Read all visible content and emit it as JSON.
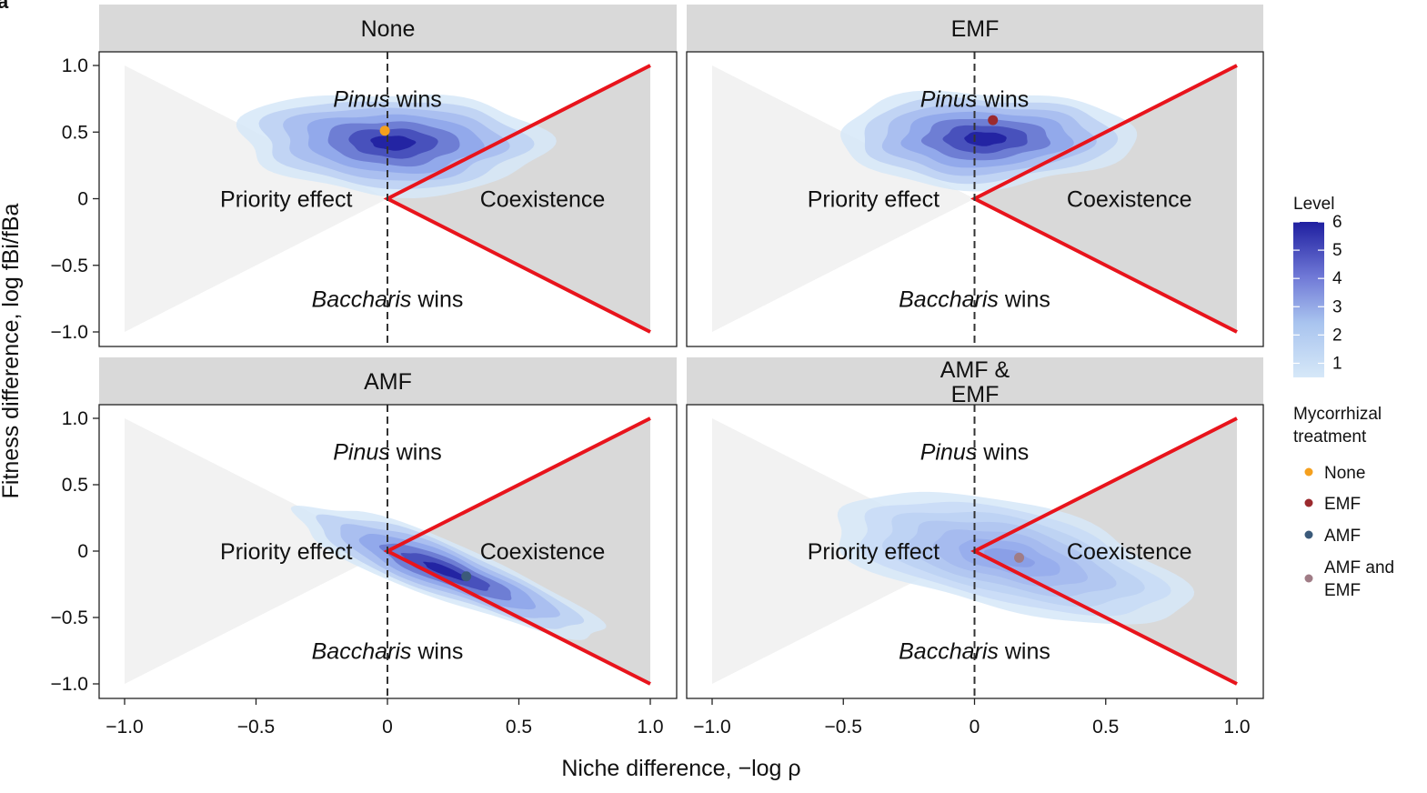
{
  "figure": {
    "panel_letter": "a"
  },
  "colors": {
    "strip_bg": "#d9d9d9",
    "tri_left": "#f2f2f2",
    "tri_right": "#d9d9d9",
    "boundary": "#e8141c",
    "density_low": "#d6e8f8",
    "density_high": "#1f1fa0",
    "dashed": "#333333"
  },
  "chart_data": [
    {
      "type": "density-contour",
      "strip": "None",
      "strip_lines": [
        "None"
      ],
      "xlabel": "Niche difference, −log ρ",
      "ylabel": "Fitness difference, log fBi/fBa",
      "xlim": [
        -1.0,
        1.0
      ],
      "ylim": [
        -1.0,
        1.0
      ],
      "x_ticks": [
        "−1.0",
        "−0.5",
        "0",
        "0.5",
        "1.0"
      ],
      "y_ticks": [
        "1.0",
        "0.5",
        "0",
        "−0.5",
        "−1.0"
      ],
      "region_labels": {
        "top_italic": "Pinus",
        "top_rest": " wins",
        "left": "Priority effect",
        "right": "Coexistence",
        "bottom_italic": "Baccharis",
        "bottom_rest": " wins"
      },
      "density": {
        "center": [
          0.02,
          0.42
        ],
        "sx": 0.26,
        "sy": 0.17,
        "rho": -0.1,
        "peak_level": 6
      },
      "mean_point": {
        "x": -0.01,
        "y": 0.51,
        "color": "#f5a01e"
      }
    },
    {
      "type": "density-contour",
      "strip": "EMF",
      "strip_lines": [
        "EMF"
      ],
      "xlim": [
        -1.0,
        1.0
      ],
      "ylim": [
        -1.0,
        1.0
      ],
      "x_ticks": [
        "−1.0",
        "−0.5",
        "0",
        "0.5",
        "1.0"
      ],
      "y_ticks": [
        "1.0",
        "0.5",
        "0",
        "−0.5",
        "−1.0"
      ],
      "region_labels": {
        "top_italic": "Pinus",
        "top_rest": " wins",
        "left": "Priority effect",
        "right": "Coexistence",
        "bottom_italic": "Baccharis",
        "bottom_rest": " wins"
      },
      "density": {
        "center": [
          0.04,
          0.45
        ],
        "sx": 0.25,
        "sy": 0.16,
        "rho": 0.0,
        "peak_level": 6
      },
      "mean_point": {
        "x": 0.07,
        "y": 0.59,
        "color": "#9b2a2e"
      }
    },
    {
      "type": "density-contour",
      "strip": "AMF",
      "strip_lines": [
        "AMF"
      ],
      "xlim": [
        -1.0,
        1.0
      ],
      "ylim": [
        -1.0,
        1.0
      ],
      "x_ticks": [
        "−1.0",
        "−0.5",
        "0",
        "0.5",
        "1.0"
      ],
      "y_ticks": [
        "1.0",
        "0.5",
        "0",
        "−0.5",
        "−1.0"
      ],
      "region_labels": {
        "top_italic": "Pinus",
        "top_rest": " wins",
        "left": "Priority effect",
        "right": "Coexistence",
        "bottom_italic": "Baccharis",
        "bottom_rest": " wins"
      },
      "density": {
        "center": [
          0.22,
          -0.15
        ],
        "sx": 0.26,
        "sy": 0.22,
        "rho": -0.88,
        "peak_level": 6
      },
      "mean_point": {
        "x": 0.3,
        "y": -0.19,
        "color": "#3b5a7a"
      }
    },
    {
      "type": "density-contour",
      "strip": "AMF & EMF",
      "strip_lines": [
        "AMF &",
        "EMF"
      ],
      "xlim": [
        -1.0,
        1.0
      ],
      "ylim": [
        -1.0,
        1.0
      ],
      "x_ticks": [
        "−1.0",
        "−0.5",
        "0",
        "0.5",
        "1.0"
      ],
      "y_ticks": [
        "1.0",
        "0.5",
        "0",
        "−0.5",
        "−1.0"
      ],
      "region_labels": {
        "top_italic": "Pinus",
        "top_rest": " wins",
        "left": "Priority effect",
        "right": "Coexistence",
        "bottom_italic": "Baccharis",
        "bottom_rest": " wins"
      },
      "density": {
        "center": [
          0.13,
          -0.05
        ],
        "sx": 0.3,
        "sy": 0.22,
        "rho": -0.55,
        "peak_level": 3.2
      },
      "mean_point": {
        "x": 0.17,
        "y": -0.05,
        "color": "#a07c86"
      }
    }
  ],
  "legend": {
    "level_title": "Level",
    "level_ticks": [
      "6",
      "5",
      "4",
      "3",
      "2",
      "1"
    ],
    "level_range": [
      0.5,
      6.0
    ],
    "treatment_title_lines": [
      "Mycorrhizal",
      "treatment"
    ],
    "treatments": [
      {
        "label_lines": [
          "None"
        ],
        "color": "#f5a01e"
      },
      {
        "label_lines": [
          "EMF"
        ],
        "color": "#9b2a2e"
      },
      {
        "label_lines": [
          "AMF"
        ],
        "color": "#3b5a7a"
      },
      {
        "label_lines": [
          "AMF and",
          "EMF"
        ],
        "color": "#a07c86"
      }
    ]
  }
}
